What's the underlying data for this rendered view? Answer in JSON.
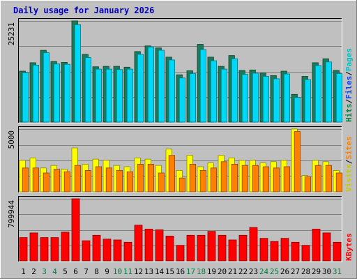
{
  "chart_data": {
    "type": "bar",
    "title": "Daily usage for January 2026",
    "days": [
      "1",
      "2",
      "3",
      "4",
      "5",
      "6",
      "7",
      "8",
      "9",
      "10",
      "11",
      "12",
      "13",
      "14",
      "15",
      "16",
      "17",
      "18",
      "19",
      "20",
      "21",
      "22",
      "23",
      "24",
      "25",
      "26",
      "27",
      "28",
      "29",
      "30",
      "31"
    ],
    "weekend_days": [
      "3",
      "4",
      "10",
      "11",
      "17",
      "18",
      "24",
      "25",
      "31"
    ],
    "panels": [
      {
        "id": "hits_files_pages",
        "max_label": "25231",
        "ylim": [
          0,
          25231
        ],
        "axis_labels": [
          {
            "text": "Hits",
            "color": "#008040"
          },
          {
            "text": "Files",
            "color": "#0040ff"
          },
          {
            "text": "Pages",
            "color": "#00c0c0"
          }
        ],
        "separators": [
          "/",
          "/"
        ],
        "series": [
          {
            "name": "Hits",
            "color": "#1a7a5a",
            "values": [
              12700,
              14800,
              17900,
              15100,
              14900,
              25231,
              16900,
              13800,
              13900,
              13900,
              13700,
              17600,
              19000,
              18500,
              16200,
              11800,
              12800,
              19400,
              16200,
              13900,
              16600,
              12900,
              13000,
              12200,
              11600,
              12700,
              6900,
              11400,
              14800,
              15800,
              12900
            ]
          },
          {
            "name": "Files",
            "color": "#00d8f8",
            "values": [
              12300,
              14200,
              17300,
              14500,
              14400,
              24300,
              16100,
              13200,
              13200,
              13100,
              13200,
              16900,
              18700,
              17900,
              15500,
              11000,
              12100,
              18100,
              15300,
              13200,
              15800,
              11900,
              12200,
              11400,
              10800,
              12000,
              6100,
              10600,
              14100,
              15000,
              12100
            ]
          },
          {
            "name": "Pages",
            "color": "#00c0c0",
            "values": []
          }
        ]
      },
      {
        "id": "visits_sites",
        "max_label": "5000",
        "ylim": [
          0,
          5000
        ],
        "axis_labels": [
          {
            "text": "Visits",
            "color": "#c8c800"
          },
          {
            "text": "Sites",
            "color": "#ff8000"
          }
        ],
        "separators": [
          "/"
        ],
        "series": [
          {
            "name": "Visits",
            "color": "#ffff00",
            "values": [
              2500,
              2700,
              1900,
              2100,
              1800,
              3500,
              2200,
              2600,
              2500,
              2100,
              2000,
              2700,
              2600,
              2100,
              3400,
              1700,
              2900,
              2000,
              2300,
              2900,
              2700,
              2500,
              2500,
              2300,
              2400,
              2500,
              5000,
              1300,
              2500,
              2400,
              1700
            ]
          },
          {
            "name": "Sites",
            "color": "#ff8000",
            "values": [
              1900,
              1900,
              1500,
              1800,
              1600,
              2100,
              1700,
              2000,
              1900,
              1700,
              1600,
              2200,
              2200,
              1500,
              2900,
              1100,
              2200,
              1700,
              1900,
              2400,
              2200,
              2100,
              2100,
              2000,
              1900,
              2000,
              4800,
              1200,
              2100,
              2100,
              1500
            ]
          }
        ]
      },
      {
        "id": "kbytes",
        "max_label": "799944",
        "ylim": [
          0,
          799944
        ],
        "axis_labels": [
          {
            "text": "KBytes",
            "color": "#ff0000"
          }
        ],
        "separators": [],
        "series": [
          {
            "name": "KBytes",
            "color": "#ff0000",
            "values": [
              300000,
              360000,
              300000,
              300000,
              370000,
              799944,
              260000,
              330000,
              280000,
              270000,
              240000,
              460000,
              410000,
              400000,
              320000,
              200000,
              330000,
              330000,
              380000,
              330000,
              270000,
              330000,
              430000,
              290000,
              250000,
              290000,
              240000,
              200000,
              410000,
              360000,
              240000
            ]
          }
        ]
      }
    ]
  }
}
